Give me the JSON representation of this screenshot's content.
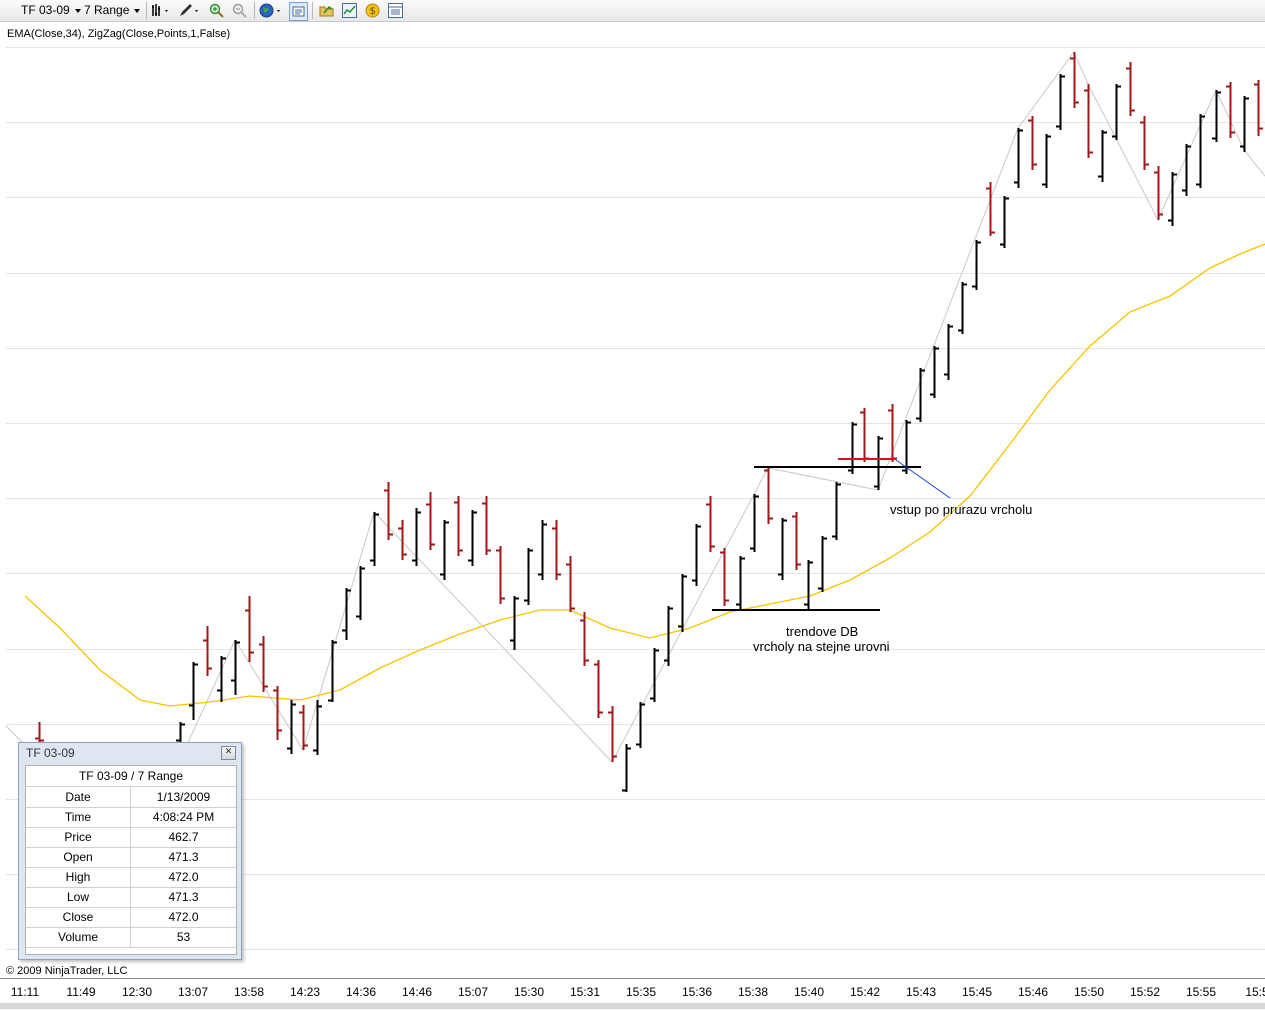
{
  "toolbar": {
    "instrument": "TF 03-09",
    "period": "7 Range",
    "icons": [
      "bar-type-icon",
      "draw-pencil-icon",
      "zoom-in-icon",
      "zoom-out-icon",
      "globe-icon",
      "chart-properties-icon",
      "folder-open-icon",
      "indicator-icon",
      "strategy-icon",
      "data-box-icon"
    ]
  },
  "indicator_label": "EMA(Close,34), ZigZag(Close,Points,1,False)",
  "copyright": "© 2009 NinjaTrader, LLC",
  "time_axis": [
    "11:11",
    "11:49",
    "12:30",
    "13:07",
    "13:58",
    "14:23",
    "14:36",
    "14:46",
    "15:07",
    "15:30",
    "15:31",
    "15:35",
    "15:36",
    "15:38",
    "15:40",
    "15:42",
    "15:43",
    "15:45",
    "15:46",
    "15:50",
    "15:52",
    "15:55",
    "15:5"
  ],
  "annotations": {
    "entry": "vstup po prurazu vrcholu",
    "db_line1": "trendove DB",
    "db_line2": "vrcholy na stejne urovni"
  },
  "data_box": {
    "title": "TF 03-09",
    "header": "TF 03-09 / 7 Range",
    "rows": [
      {
        "key": "Date",
        "value": "1/13/2009"
      },
      {
        "key": "Time",
        "value": "4:08:24 PM"
      },
      {
        "key": "Price",
        "value": "462.7"
      },
      {
        "key": "Open",
        "value": "471.3"
      },
      {
        "key": "High",
        "value": "472.0"
      },
      {
        "key": "Low",
        "value": "471.3"
      },
      {
        "key": "Close",
        "value": "472.0"
      },
      {
        "key": "Volume",
        "value": "53"
      }
    ]
  },
  "colors": {
    "up_bar": "#000000",
    "down_bar": "#a01818",
    "ema": "#f5c400",
    "zigzag": "#c8c8c8",
    "grid": "#e4e4e4",
    "entry_line": "#1a3fd0",
    "marker_red": "#d01818"
  }
}
